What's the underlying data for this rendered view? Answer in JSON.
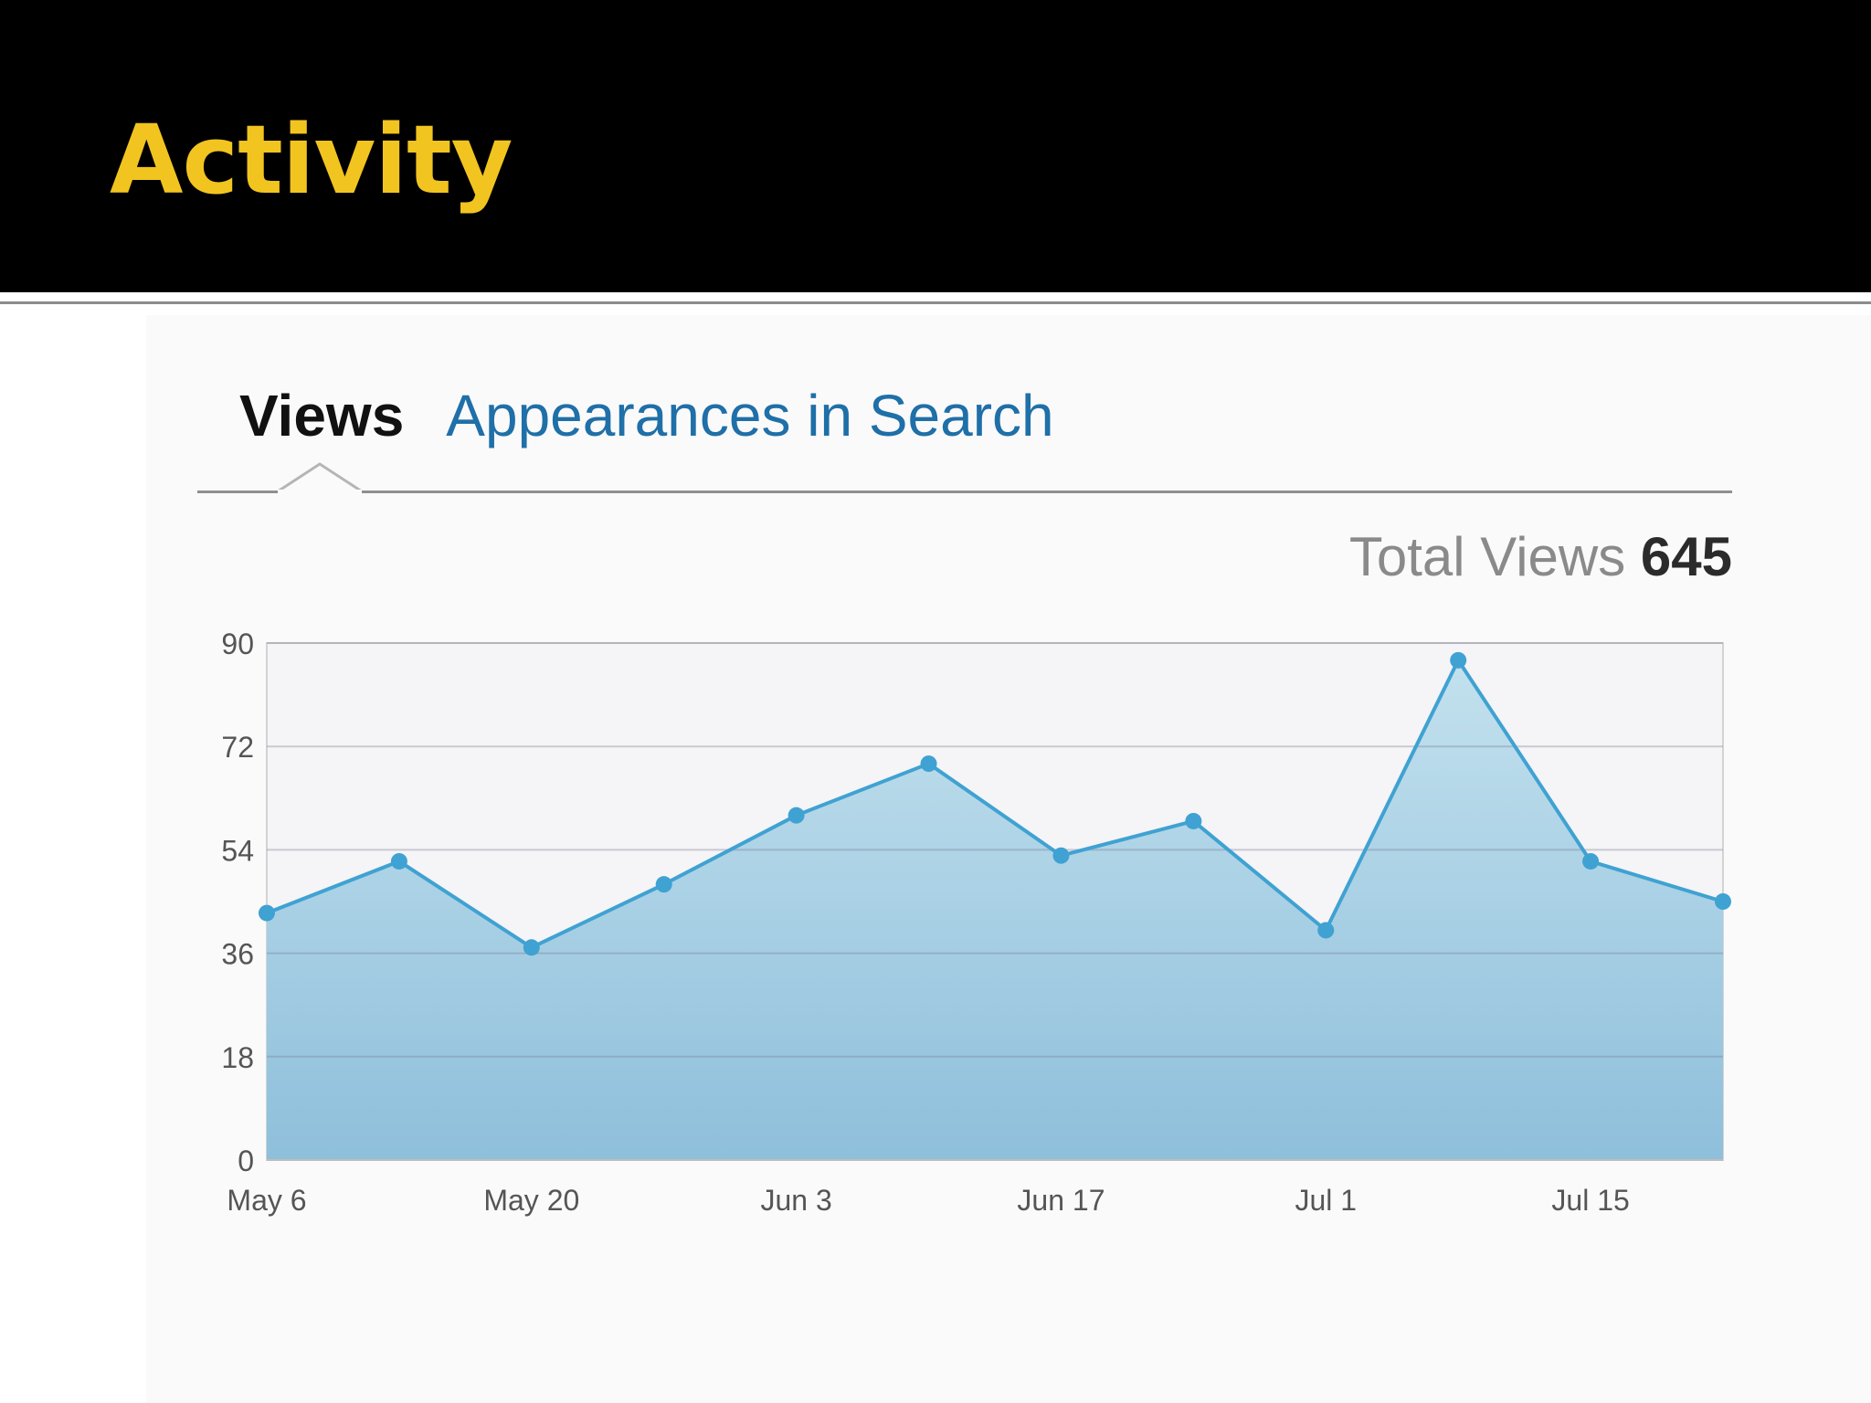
{
  "slide": {
    "title": "Activity",
    "title_color": "#f2c420"
  },
  "tabs": [
    {
      "label": "Views",
      "active": true
    },
    {
      "label": "Appearances in Search",
      "active": false
    }
  ],
  "total": {
    "label": "Total Views",
    "value": "645"
  },
  "chart_data": {
    "type": "area",
    "x": [
      "May 6",
      "May 13",
      "May 20",
      "May 27",
      "Jun 3",
      "Jun 10",
      "Jun 17",
      "Jun 24",
      "Jul 1",
      "Jul 8",
      "Jul 15",
      "Jul 22"
    ],
    "xticks": [
      "May 6",
      "May 20",
      "Jun 3",
      "Jun 17",
      "Jul 1",
      "Jul 15"
    ],
    "series": [
      {
        "values": [
          43,
          52,
          37,
          48,
          60,
          69,
          53,
          59,
          40,
          87,
          52,
          45
        ]
      }
    ],
    "yticks": [
      0,
      18,
      36,
      54,
      72,
      90
    ],
    "ylim": [
      0,
      90
    ],
    "grid": true,
    "legend": false,
    "colors": {
      "line": "#3fa2d2",
      "fill_top": "#c3e1ee",
      "fill_bottom": "#8ebfdb",
      "grid": "#c9c9c9"
    }
  }
}
